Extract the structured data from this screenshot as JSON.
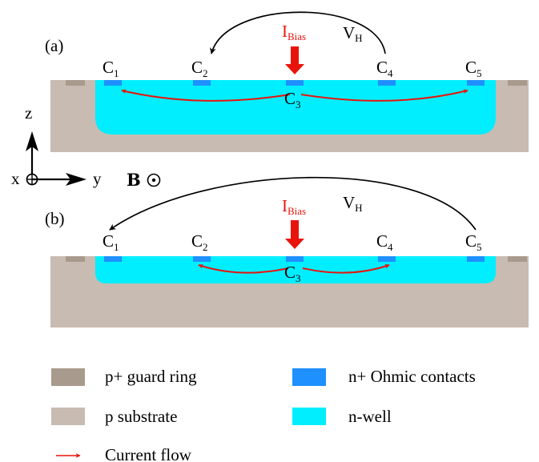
{
  "panels": [
    {
      "tag": "(a)",
      "bias_label": "I",
      "bias_sub": "Bias",
      "vh_label": "V",
      "vh_sub": "H",
      "contacts": [
        {
          "letter": "C",
          "sub": "1"
        },
        {
          "letter": "C",
          "sub": "2"
        },
        {
          "letter": "C",
          "sub": "3"
        },
        {
          "letter": "C",
          "sub": "4"
        },
        {
          "letter": "C",
          "sub": "5"
        }
      ]
    },
    {
      "tag": "(b)",
      "bias_label": "I",
      "bias_sub": "Bias",
      "vh_label": "V",
      "vh_sub": "H",
      "contacts": [
        {
          "letter": "C",
          "sub": "1"
        },
        {
          "letter": "C",
          "sub": "2"
        },
        {
          "letter": "C",
          "sub": "3"
        },
        {
          "letter": "C",
          "sub": "4"
        },
        {
          "letter": "C",
          "sub": "5"
        }
      ]
    }
  ],
  "axes": {
    "z": "z",
    "x": "x",
    "y": "y"
  },
  "field": {
    "label": "B",
    "symbol": "⊙"
  },
  "legend": [
    {
      "label": "p+ guard ring",
      "color": "#a89a8c"
    },
    {
      "label": "n+ Ohmic contacts",
      "color": "#1e90ff"
    },
    {
      "label": "p substrate",
      "color": "#c8bbb1"
    },
    {
      "label": "n-well",
      "color": "#00eeff"
    },
    {
      "label": "Current flow",
      "color": "#e8140c"
    }
  ],
  "colors": {
    "substrate": "#c8bbb1",
    "guard_ring": "#a89a8c",
    "nwell": "#00eeff",
    "contact": "#1e90ff",
    "current": "#e8140c",
    "text": "#000000"
  }
}
